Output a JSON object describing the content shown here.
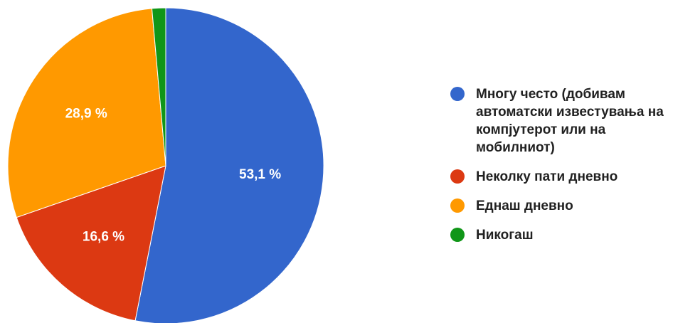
{
  "chart_data": {
    "type": "pie",
    "slices": [
      {
        "label": "Многу често (добивам автоматски известувања на компјутерот или на мобилниот)",
        "value": 53.1,
        "display": "53,1 %",
        "color": "#3366cc"
      },
      {
        "label": "Неколку пати дневно",
        "value": 16.6,
        "display": "16,6 %",
        "color": "#dc3912"
      },
      {
        "label": "Еднаш дневно",
        "value": 28.9,
        "display": "28,9 %",
        "color": "#ff9900"
      },
      {
        "label": "Никогаш",
        "value": 1.4,
        "display": "",
        "color": "#109618"
      }
    ],
    "legend_position": "right"
  }
}
